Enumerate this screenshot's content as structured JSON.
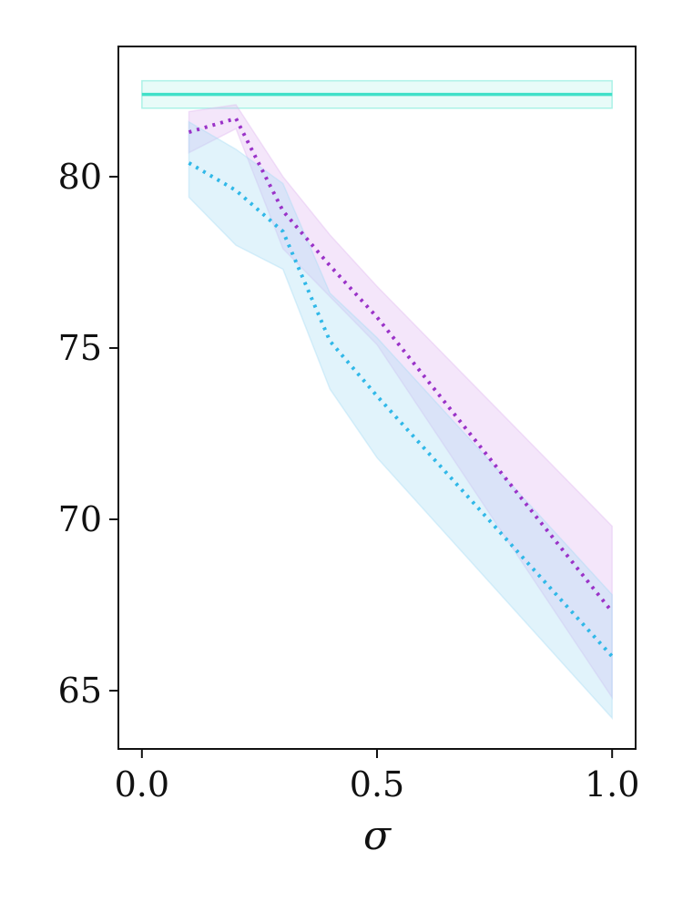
{
  "chart_data": {
    "type": "line",
    "title": "",
    "xlabel": "σ",
    "ylabel": "",
    "xlim": [
      -0.05,
      1.05
    ],
    "ylim": [
      63.3,
      83.8
    ],
    "xticks": [
      0.0,
      0.5,
      1.0
    ],
    "xtick_labels": [
      "0.0",
      "0.5",
      "1.0"
    ],
    "yticks": [
      65,
      70,
      75,
      80
    ],
    "ytick_labels": [
      "65",
      "70",
      "75",
      "80"
    ],
    "grid": false,
    "legend": "none",
    "series": [
      {
        "style": "solid",
        "color": "#40e0c8",
        "x": [
          0.0,
          1.0
        ],
        "y": [
          82.4,
          82.4
        ],
        "lower": [
          82.0,
          82.0
        ],
        "upper": [
          82.8,
          82.8
        ]
      },
      {
        "style": "dotted",
        "color": "#9a32c8",
        "band_color": "#e0b8f0",
        "x": [
          0.1,
          0.2,
          0.3,
          0.4,
          0.5,
          1.0
        ],
        "y": [
          81.3,
          81.7,
          79.0,
          77.4,
          75.9,
          67.3
        ],
        "lower": [
          80.7,
          81.4,
          77.9,
          76.5,
          75.1,
          64.8
        ],
        "upper": [
          81.9,
          82.1,
          80.0,
          78.3,
          76.8,
          69.8
        ]
      },
      {
        "style": "dotted",
        "color": "#30b8e8",
        "band_color": "#a8dcf4",
        "x": [
          0.1,
          0.2,
          0.3,
          0.4,
          0.5,
          1.0
        ],
        "y": [
          80.4,
          79.6,
          78.4,
          75.2,
          73.6,
          66.0
        ],
        "lower": [
          79.4,
          78.0,
          77.3,
          73.8,
          71.8,
          64.2
        ],
        "upper": [
          81.6,
          80.8,
          79.8,
          76.6,
          75.3,
          67.8
        ]
      }
    ]
  }
}
